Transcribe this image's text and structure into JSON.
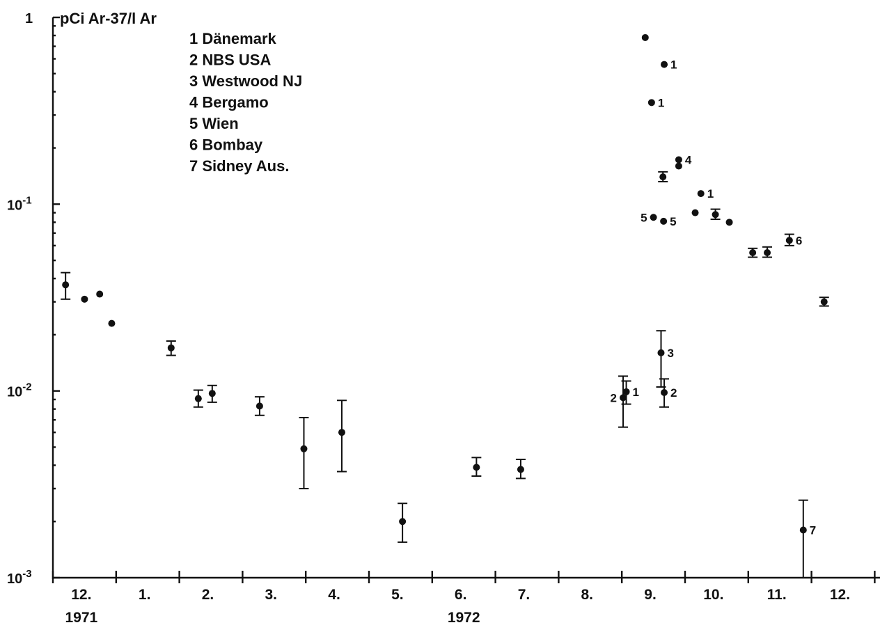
{
  "chart_data": {
    "type": "scatter",
    "title": "",
    "ylabel": "pCi Ar-37/l Ar",
    "xlabel": "",
    "y_scale": "log",
    "ylim": [
      0.001,
      1
    ],
    "y_ticks": [
      {
        "value": 1,
        "label": "1"
      },
      {
        "value": 0.1,
        "label": "10-1",
        "base": "10",
        "exp": "-1"
      },
      {
        "value": 0.01,
        "label": "10-2",
        "base": "10",
        "exp": "-2"
      },
      {
        "value": 0.001,
        "label": "10-3",
        "base": "10",
        "exp": "-3"
      }
    ],
    "x_unit": "month index from Dec 1971 (0 = start of December 1971)",
    "xlim": [
      0,
      13
    ],
    "month_labels": [
      "12.",
      "1.",
      "2.",
      "3.",
      "4.",
      "5.",
      "6.",
      "7.",
      "8.",
      "9.",
      "10.",
      "11.",
      "12."
    ],
    "year_labels": [
      {
        "text": "1971",
        "at_month": 0.45
      },
      {
        "text": "1972",
        "at_month": 6.5
      }
    ],
    "legend": [
      {
        "id": "1",
        "text": "1 Dänemark"
      },
      {
        "id": "2",
        "text": "2 NBS USA"
      },
      {
        "id": "3",
        "text": "3 Westwood NJ"
      },
      {
        "id": "4",
        "text": "4 Bergamo"
      },
      {
        "id": "5",
        "text": "5 Wien"
      },
      {
        "id": "6",
        "text": "6 Bombay"
      },
      {
        "id": "7",
        "text": "7 Sidney Aus."
      }
    ],
    "points": [
      {
        "x": 0.2,
        "y": 0.037,
        "lo": 0.031,
        "hi": 0.043
      },
      {
        "x": 0.5,
        "y": 0.031
      },
      {
        "x": 0.74,
        "y": 0.033
      },
      {
        "x": 0.93,
        "y": 0.023
      },
      {
        "x": 1.87,
        "y": 0.017,
        "lo": 0.0155,
        "hi": 0.0185
      },
      {
        "x": 2.3,
        "y": 0.0091,
        "lo": 0.0082,
        "hi": 0.0101
      },
      {
        "x": 2.52,
        "y": 0.0097,
        "lo": 0.0087,
        "hi": 0.0107
      },
      {
        "x": 3.27,
        "y": 0.0083,
        "lo": 0.0074,
        "hi": 0.0093
      },
      {
        "x": 3.97,
        "y": 0.0049,
        "lo": 0.003,
        "hi": 0.0072
      },
      {
        "x": 4.57,
        "y": 0.006,
        "lo": 0.0037,
        "hi": 0.0089
      },
      {
        "x": 5.53,
        "y": 0.002,
        "lo": 0.00155,
        "hi": 0.0025
      },
      {
        "x": 6.7,
        "y": 0.0039,
        "lo": 0.0035,
        "hi": 0.0044
      },
      {
        "x": 7.4,
        "y": 0.0038,
        "lo": 0.0034,
        "hi": 0.0043
      },
      {
        "x": 9.02,
        "y": 0.0092,
        "lo": 0.0064,
        "hi": 0.012,
        "label": "2",
        "label_side": "left"
      },
      {
        "x": 9.07,
        "y": 0.0099,
        "lo": 0.0085,
        "hi": 0.0113,
        "label": "1",
        "label_side": "right"
      },
      {
        "x": 9.62,
        "y": 0.016,
        "lo": 0.0105,
        "hi": 0.021,
        "label": "3",
        "label_side": "right"
      },
      {
        "x": 9.67,
        "y": 0.0098,
        "lo": 0.0082,
        "hi": 0.0116,
        "label": "2",
        "label_side": "right"
      },
      {
        "x": 9.37,
        "y": 0.78
      },
      {
        "x": 9.67,
        "y": 0.56,
        "label": "1",
        "label_side": "right"
      },
      {
        "x": 9.47,
        "y": 0.35,
        "label": "1",
        "label_side": "right"
      },
      {
        "x": 9.65,
        "y": 0.14,
        "lo": 0.132,
        "hi": 0.149
      },
      {
        "x": 9.9,
        "y": 0.173,
        "label": "4",
        "label_side": "right"
      },
      {
        "x": 9.9,
        "y": 0.16
      },
      {
        "x": 10.25,
        "y": 0.114,
        "label": "1",
        "label_side": "right"
      },
      {
        "x": 9.5,
        "y": 0.085,
        "label": "5",
        "label_side": "left"
      },
      {
        "x": 9.66,
        "y": 0.081,
        "label": "5",
        "label_side": "right"
      },
      {
        "x": 10.16,
        "y": 0.09
      },
      {
        "x": 10.48,
        "y": 0.088,
        "lo": 0.083,
        "hi": 0.094
      },
      {
        "x": 10.7,
        "y": 0.08
      },
      {
        "x": 11.07,
        "y": 0.055,
        "lo": 0.052,
        "hi": 0.058
      },
      {
        "x": 11.3,
        "y": 0.055,
        "lo": 0.052,
        "hi": 0.059
      },
      {
        "x": 11.65,
        "y": 0.064,
        "lo": 0.06,
        "hi": 0.069,
        "label": "6",
        "label_side": "right"
      },
      {
        "x": 12.2,
        "y": 0.03,
        "lo": 0.0285,
        "hi": 0.0317
      },
      {
        "x": 11.87,
        "y": 0.0018,
        "lo": 0.001,
        "hi": 0.0026,
        "label": "7",
        "label_side": "right"
      }
    ]
  }
}
